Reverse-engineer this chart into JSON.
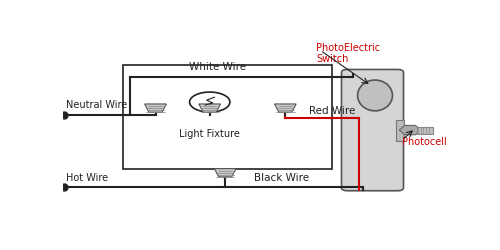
{
  "bg_color": "#ffffff",
  "wire_black": "#222222",
  "wire_red": "#cc0000",
  "text_black": "#222222",
  "text_red": "#cc0000",
  "labels": {
    "white_wire": "White Wire",
    "red_wire": "Red Wire",
    "black_wire": "Black Wire",
    "neutral_wire": "Neutral Wire",
    "hot_wire": "Hot Wire",
    "light_fixture": "Light Fixture",
    "photo_switch": "PhotoElectric\nSwitch",
    "photocell": "Photocell"
  },
  "jb": [
    0.155,
    0.28,
    0.695,
    0.82
  ],
  "pc_body": [
    0.735,
    0.18,
    0.865,
    0.78
  ]
}
